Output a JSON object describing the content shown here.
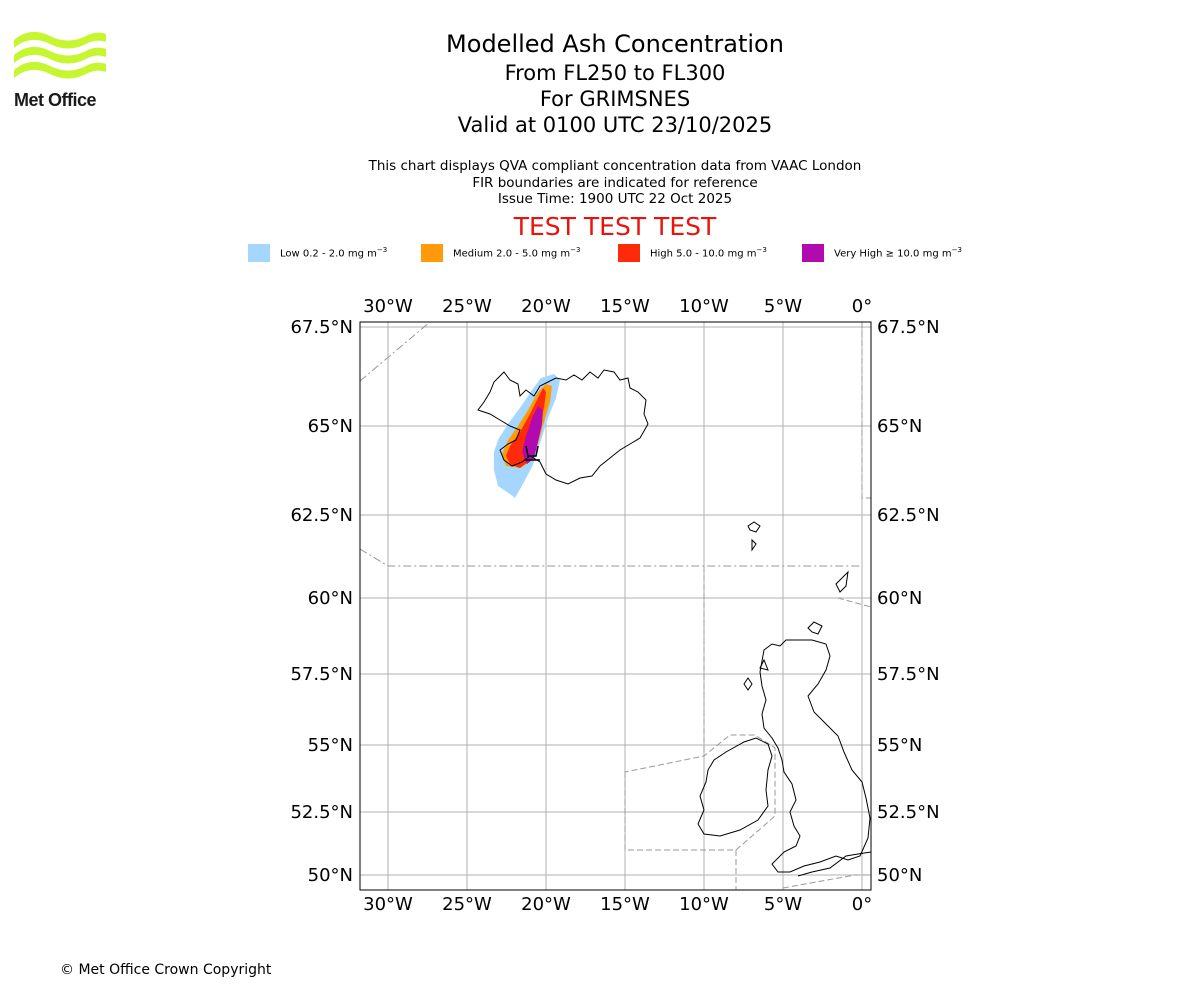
{
  "logo": {
    "name": "Met Office",
    "brand_color": "#c6f630"
  },
  "title": {
    "main": "Modelled Ash Concentration",
    "levels": "From FL250 to FL300",
    "volcano": "For GRIMSNES",
    "valid": "Valid at 0100 UTC 23/10/2025"
  },
  "info": {
    "line1": "This chart displays QVA compliant concentration data from VAAC London",
    "line2": "FIR boundaries are indicated for reference",
    "line3": "Issue Time: 1900 UTC 22 Oct 2025"
  },
  "test_banner": "TEST TEST TEST",
  "legend": [
    {
      "label_prefix": "Low 0.2 - 2.0 mg m",
      "unit_exp": "−3",
      "color": "#a5d6ff"
    },
    {
      "label_prefix": "Medium 2.0 - 5.0 mg m",
      "unit_exp": "−3",
      "color": "#ff9a0a"
    },
    {
      "label_prefix": "High 5.0 - 10.0 mg m",
      "unit_exp": "−3",
      "color": "#ff2a0a"
    },
    {
      "label_prefix": "Very High  ≥  10.0 mg m",
      "unit_exp": "−3",
      "color": "#b10aaf"
    }
  ],
  "map": {
    "lon_labels": [
      "30°W",
      "25°W",
      "20°W",
      "15°W",
      "10°W",
      "5°W",
      "0°"
    ],
    "lat_labels": [
      "67.5°N",
      "65°N",
      "62.5°N",
      "60°N",
      "57.5°N",
      "55°N",
      "52.5°N",
      "50°N"
    ],
    "grid_color": "#b0b0b0",
    "coast_color": "#000000",
    "fir_color": "#999999"
  },
  "copyright": "© Met Office Crown Copyright"
}
